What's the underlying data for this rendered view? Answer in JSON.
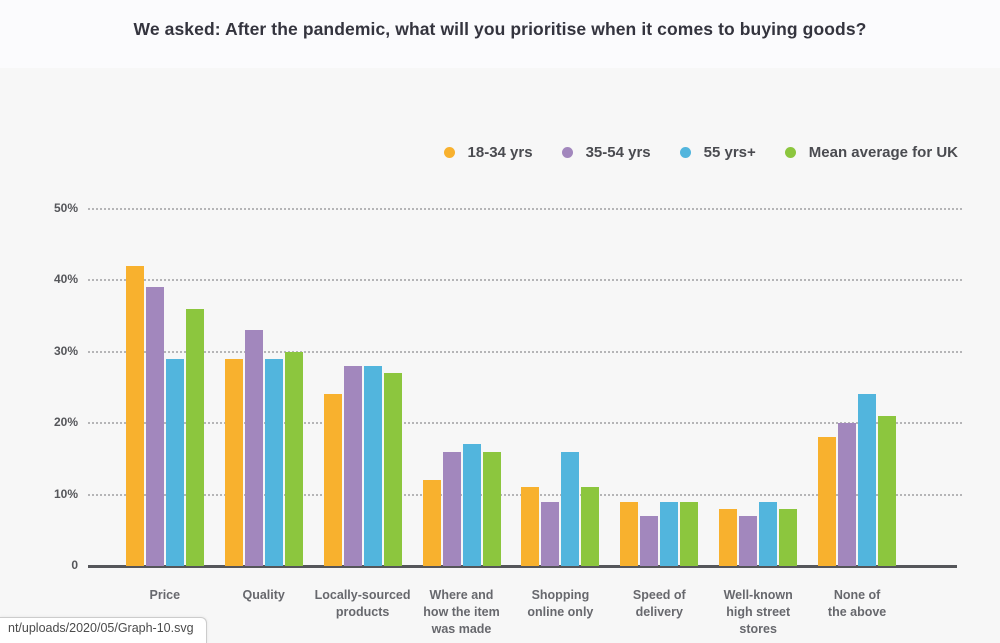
{
  "page": {
    "background": "#f7f7f7",
    "header_background": "#fbfbfd"
  },
  "chart_data": {
    "type": "bar",
    "title": "We asked: After the pandemic, what will you prioritise when it comes to buying goods?",
    "categories": [
      "Price",
      "Quality",
      "Locally-sourced products",
      "Where and how the item was made",
      "Shopping online only",
      "Speed of delivery",
      "Well-known high street stores",
      "None of the above"
    ],
    "category_label_lines": [
      [
        "Price"
      ],
      [
        "Quality"
      ],
      [
        "Locally-sourced",
        "products"
      ],
      [
        "Where and",
        "how the item",
        "was made"
      ],
      [
        "Shopping",
        "online only"
      ],
      [
        "Speed of",
        "delivery"
      ],
      [
        "Well-known",
        "high street",
        "stores"
      ],
      [
        "None of",
        "the above"
      ]
    ],
    "series": [
      {
        "name": "18-34 yrs",
        "color": "#F8B12E",
        "values": [
          42,
          29,
          24,
          12,
          11,
          9,
          8,
          18
        ]
      },
      {
        "name": "35-54 yrs",
        "color": "#A287BD",
        "values": [
          39,
          33,
          28,
          16,
          9,
          7,
          7,
          20
        ]
      },
      {
        "name": "55 yrs+",
        "color": "#52B5DD",
        "values": [
          29,
          29,
          28,
          17,
          16,
          9,
          9,
          24
        ]
      },
      {
        "name": "Mean average for UK",
        "color": "#8CC63E",
        "values": [
          36,
          30,
          27,
          16,
          11,
          9,
          8,
          21
        ]
      }
    ],
    "y_ticks": [
      {
        "label": "50%",
        "value": 50
      },
      {
        "label": "40%",
        "value": 40
      },
      {
        "label": "30%",
        "value": 30
      },
      {
        "label": "20%",
        "value": 20
      },
      {
        "label": "10%",
        "value": 10
      },
      {
        "label": "0",
        "value": 0
      }
    ],
    "ylim": [
      0,
      50
    ],
    "ylabel": "",
    "xlabel": "",
    "grid": "dotted-horizontal",
    "legend_position": "top-right",
    "axis_color": "#55565a",
    "gridline_color": "#b5b5b7"
  },
  "status_bar": {
    "url_text": "nt/uploads/2020/05/Graph-10.svg"
  }
}
